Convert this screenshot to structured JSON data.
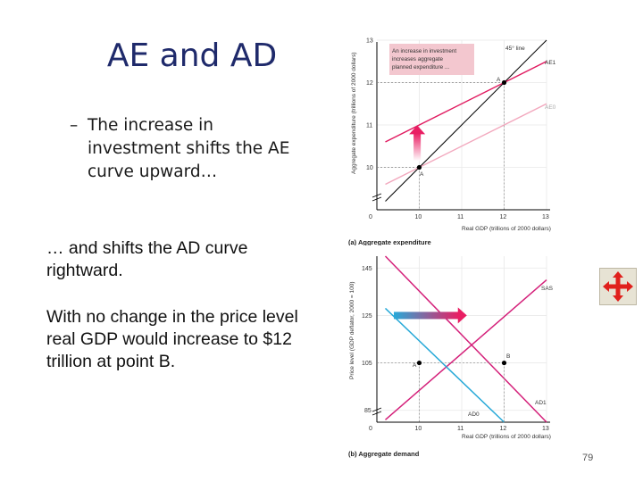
{
  "slide": {
    "title": "AE and AD",
    "bullet_dash": "–",
    "bullet_text": "The increase in investment shifts the AE curve upward…",
    "body_1": "… and shifts the AD curve rightward.",
    "body_2": "With no change in the price level real GDP would increase to $12 trillion at point B.",
    "page_number": "79"
  },
  "colors": {
    "ae1": "#e0185e",
    "ae0": "#f2a7bd",
    "ad1": "#d4207a",
    "ad0": "#27a9d8",
    "sas": "#d4207a",
    "line45": "#000000",
    "arrow": "#e91e63",
    "callout_bg": "#f3c7cf",
    "nav_icon": "#e0201c"
  },
  "chart_data": [
    {
      "type": "line",
      "title": "(a) Aggregate expenditure",
      "ylabel": "Aggregate expenditure (trillions of 2000 dollars)",
      "xlabel": "Real GDP (trillions of 2000 dollars)",
      "xlim": [
        9,
        13
      ],
      "ylim": [
        9,
        13
      ],
      "x_ticks": [
        "0",
        "10",
        "11",
        "12",
        "13"
      ],
      "y_ticks": [
        "10",
        "11",
        "12",
        "13"
      ],
      "series": [
        {
          "name": "45° line",
          "x": [
            9.2,
            13
          ],
          "y": [
            9.2,
            13
          ]
        },
        {
          "name": "AE1",
          "x": [
            9.2,
            13
          ],
          "y": [
            10.6,
            12.5
          ]
        },
        {
          "name": "AE0",
          "x": [
            9.2,
            13
          ],
          "y": [
            9.6,
            11.5
          ]
        }
      ],
      "points": [
        {
          "label": "A",
          "x": 10,
          "y": 10
        },
        {
          "label": "A",
          "x": 12,
          "y": 12
        }
      ],
      "annotation": "An increase in investment increases aggregate planned expenditure ...",
      "arrow": {
        "x": 9.95,
        "from": 10.15,
        "to": 10.95
      }
    },
    {
      "type": "line",
      "title": "(b) Aggregate demand",
      "ylabel": "Price level (GDP deflator, 2000 = 100)",
      "xlabel": "Real GDP (trillions of 2000 dollars)",
      "xlim": [
        9,
        13
      ],
      "ylim": [
        80,
        150
      ],
      "x_ticks": [
        "0",
        "10",
        "11",
        "12",
        "13"
      ],
      "y_ticks": [
        "85",
        "105",
        "125",
        "145"
      ],
      "series": [
        {
          "name": "SAS",
          "x": [
            9.2,
            13
          ],
          "y": [
            81,
            140
          ]
        },
        {
          "name": "AD1",
          "x": [
            9.2,
            13
          ],
          "y": [
            150,
            80
          ]
        },
        {
          "name": "AD0",
          "x": [
            9.2,
            12
          ],
          "y": [
            128,
            80
          ]
        }
      ],
      "points": [
        {
          "label": "A",
          "x": 10,
          "y": 105
        },
        {
          "label": "B",
          "x": 12,
          "y": 105
        }
      ],
      "arrow": {
        "y": 125,
        "from": 9.4,
        "to": 11.1
      }
    }
  ],
  "chart_text": {
    "a": {
      "ylabel": "Aggregate expenditure (trillions of 2000 dollars)",
      "xlabel": "Real GDP (trillions of 2000 dollars)",
      "caption": "(a) Aggregate expenditure",
      "line45": "45° line",
      "ae1": "AE1",
      "ae0": "AE0",
      "point_a1": "A",
      "point_a0": "A",
      "callout": [
        "An increase in investment",
        "increases aggregate",
        "planned expenditure ..."
      ],
      "origin": "0",
      "x10": "10",
      "x11": "11",
      "x12": "12",
      "x13": "13",
      "y10": "10",
      "y11": "11",
      "y12": "12",
      "y13": "13"
    },
    "b": {
      "ylabel": "Price level (GDP deflator, 2000 = 100)",
      "xlabel": "Real GDP (trillions of 2000 dollars)",
      "caption": "(b) Aggregate demand",
      "sas": "SAS",
      "ad1": "AD1",
      "ad0": "AD0",
      "point_a": "A",
      "point_b": "B",
      "origin": "0",
      "x10": "10",
      "x11": "11",
      "x12": "12",
      "x13": "13",
      "y85": "85",
      "y105": "105",
      "y125": "125",
      "y145": "145"
    }
  },
  "nav": {
    "icon": "move-arrows-icon"
  }
}
